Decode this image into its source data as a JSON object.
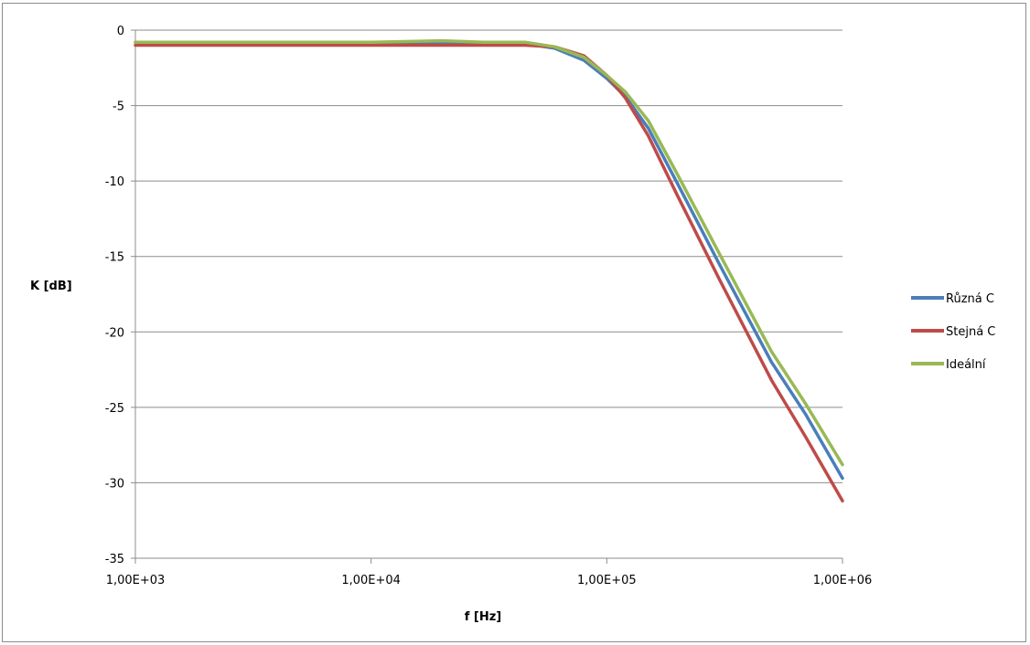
{
  "chart_data": {
    "type": "line",
    "title": "",
    "xlabel": "f [Hz]",
    "ylabel": "K [dB]",
    "x_scale": "log",
    "xlim": [
      1000,
      1000000
    ],
    "ylim": [
      -35,
      0
    ],
    "x_ticks": [
      1000,
      10000,
      100000,
      1000000
    ],
    "x_tick_labels": [
      "1,00E+03",
      "1,00E+04",
      "1,00E+05",
      "1,00E+06"
    ],
    "y_ticks": [
      0,
      -5,
      -10,
      -15,
      -20,
      -25,
      -30,
      -35
    ],
    "y_tick_labels": [
      "0",
      "-5",
      "-10",
      "-15",
      "-20",
      "-25",
      "-30",
      "-35"
    ],
    "grid": "horizontal",
    "legend": "right",
    "x": [
      1000,
      5000,
      10000,
      20000,
      30000,
      45000,
      60000,
      80000,
      100000,
      120000,
      150000,
      200000,
      300000,
      500000,
      700000,
      1000000
    ],
    "series": [
      {
        "name": "Různá C",
        "color": "#4a7ebb",
        "values": [
          -0.8,
          -0.8,
          -0.8,
          -0.8,
          -0.8,
          -0.9,
          -1.2,
          -2.0,
          -3.2,
          -4.4,
          -6.5,
          -10.2,
          -15.5,
          -22.0,
          -25.5,
          -29.7
        ]
      },
      {
        "name": "Stejná C",
        "color": "#be4b48",
        "values": [
          -1.0,
          -1.0,
          -1.0,
          -1.0,
          -1.0,
          -1.0,
          -1.1,
          -1.7,
          -3.0,
          -4.5,
          -7.0,
          -11.0,
          -16.5,
          -23.2,
          -27.0,
          -31.2
        ]
      },
      {
        "name": "Ideální",
        "color": "#98b954",
        "values": [
          -0.8,
          -0.8,
          -0.8,
          -0.7,
          -0.8,
          -0.8,
          -1.1,
          -1.8,
          -3.0,
          -4.1,
          -6.0,
          -9.6,
          -14.8,
          -21.3,
          -24.8,
          -28.8
        ]
      }
    ]
  }
}
